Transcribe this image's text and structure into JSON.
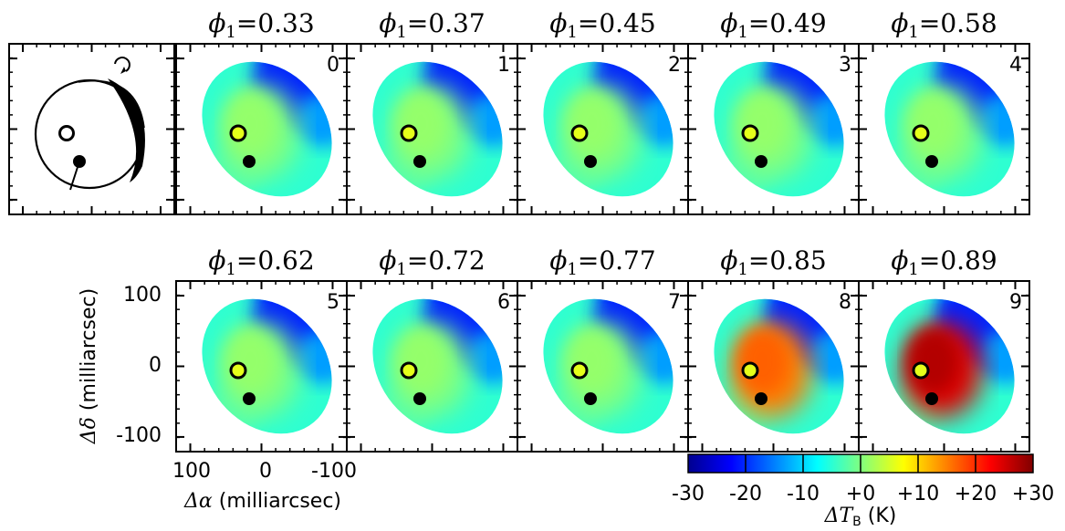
{
  "figure": {
    "panels": [
      {
        "index": "0",
        "phase_symbol": "ϕ",
        "phase_subscript": "1",
        "phase_value": "0.33",
        "tb_level": 0.15
      },
      {
        "index": "1",
        "phase_symbol": "ϕ",
        "phase_subscript": "1",
        "phase_value": "0.37",
        "tb_level": 0.18
      },
      {
        "index": "2",
        "phase_symbol": "ϕ",
        "phase_subscript": "1",
        "phase_value": "0.45",
        "tb_level": 0.35
      },
      {
        "index": "3",
        "phase_symbol": "ϕ",
        "phase_subscript": "1",
        "phase_value": "0.49",
        "tb_level": 0.45
      },
      {
        "index": "4",
        "phase_symbol": "ϕ",
        "phase_subscript": "1",
        "phase_value": "0.58",
        "tb_level": 0.42
      },
      {
        "index": "5",
        "phase_symbol": "ϕ",
        "phase_subscript": "1",
        "phase_value": "0.62",
        "tb_level": 0.48
      },
      {
        "index": "6",
        "phase_symbol": "ϕ",
        "phase_subscript": "1",
        "phase_value": "0.72",
        "tb_level": 0.5
      },
      {
        "index": "7",
        "phase_symbol": "ϕ",
        "phase_subscript": "1",
        "phase_value": "0.77",
        "tb_level": 0.5
      },
      {
        "index": "8",
        "phase_symbol": "ϕ",
        "phase_subscript": "1",
        "phase_value": "0.85",
        "tb_level": 0.78
      },
      {
        "index": "9",
        "phase_symbol": "ϕ",
        "phase_subscript": "1",
        "phase_value": "0.89",
        "tb_level": 0.95
      }
    ],
    "y_axis": {
      "symbol": "Δδ",
      "units": "(milliarcsec)",
      "ticks": [
        "100",
        "0",
        "-100"
      ]
    },
    "x_axis": {
      "symbol": "Δα",
      "units": "(milliarcsec)",
      "ticks": [
        "100",
        "0",
        "-100"
      ]
    },
    "colorbar": {
      "ticks": [
        "-30",
        "-20",
        "-10",
        "+0",
        "+10",
        "+20",
        "+30"
      ],
      "label_symbol": "ΔT",
      "label_subscript": "B",
      "label_units": "(K)",
      "range": [
        -30,
        30
      ],
      "colormap": "jet"
    },
    "colors": {
      "open_marker": "#000000",
      "filled_marker": "#000000",
      "frame": "#000000"
    }
  }
}
